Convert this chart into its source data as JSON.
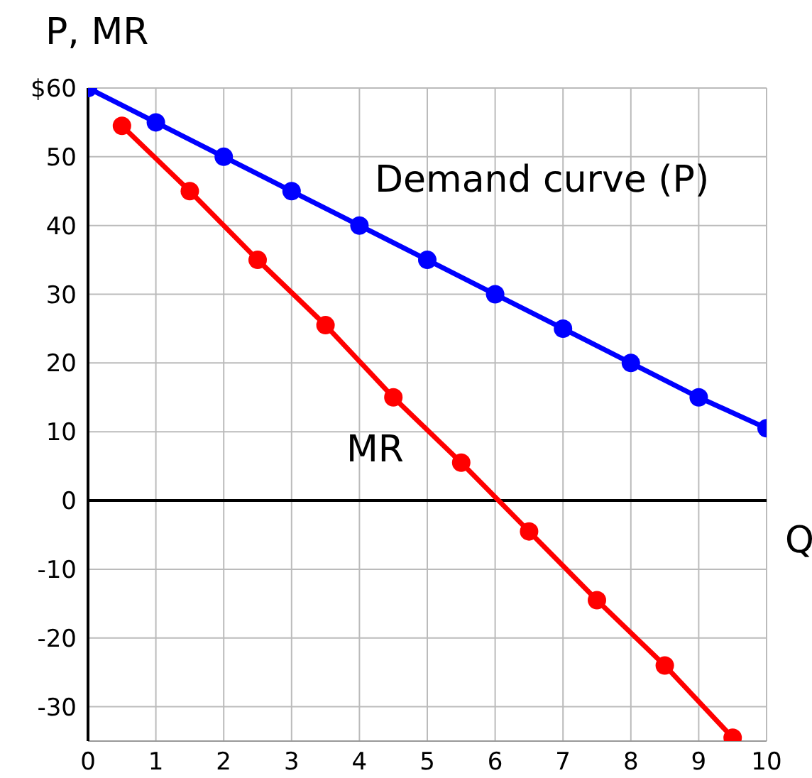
{
  "chart_data": {
    "type": "line",
    "xlabel": "Q",
    "ylabel": "P, MR",
    "xlim": [
      0,
      10
    ],
    "xticks": [
      0,
      1,
      2,
      3,
      4,
      5,
      6,
      7,
      8,
      9,
      10
    ],
    "ylim": [
      -35,
      60
    ],
    "yticks": [
      -30,
      -20,
      -10,
      0,
      10,
      20,
      30,
      40,
      50,
      {
        "value": 60,
        "label": "$60"
      }
    ],
    "series": [
      {
        "color": "#0000ff",
        "x": [
          0,
          1,
          2,
          3,
          4,
          5,
          6,
          7,
          8,
          9,
          10
        ],
        "values": [
          60,
          55,
          50,
          45,
          40,
          35,
          30,
          25,
          20,
          15,
          10.5
        ]
      },
      {
        "color": "#ff0000",
        "x": [
          0.5,
          1.5,
          2.5,
          3.5,
          4.5,
          5.5,
          6.5,
          7.5,
          8.5,
          9.5
        ],
        "values": [
          54.5,
          45,
          35,
          25.5,
          15,
          5.5,
          -4.5,
          -14.5,
          -24,
          -34.5
        ]
      }
    ],
    "ref_lines": [
      {
        "axis": "y",
        "value": 0,
        "color": "#000000"
      }
    ],
    "annotations": [
      "Demand curve (P)",
      "MR"
    ],
    "grid": true,
    "marker": "circle",
    "line_style": "solid"
  }
}
